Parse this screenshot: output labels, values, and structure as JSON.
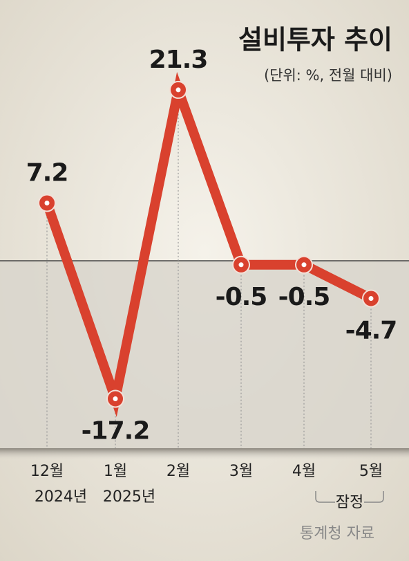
{
  "chart_data": {
    "type": "line",
    "title": "설비투자 추이",
    "subtitle": "(단위: %, 전월 대비)",
    "categories": [
      "12월",
      "1월",
      "2월",
      "3월",
      "4월",
      "5월"
    ],
    "category_sublabels": [
      "2024년",
      "2025년",
      null,
      null,
      null,
      null
    ],
    "series": [
      {
        "color": "#d9412e",
        "values": [
          7.2,
          -17.2,
          21.3,
          -0.5,
          -0.5,
          -4.7
        ]
      }
    ],
    "annotation": "잠정",
    "source": "통계청 자료"
  }
}
